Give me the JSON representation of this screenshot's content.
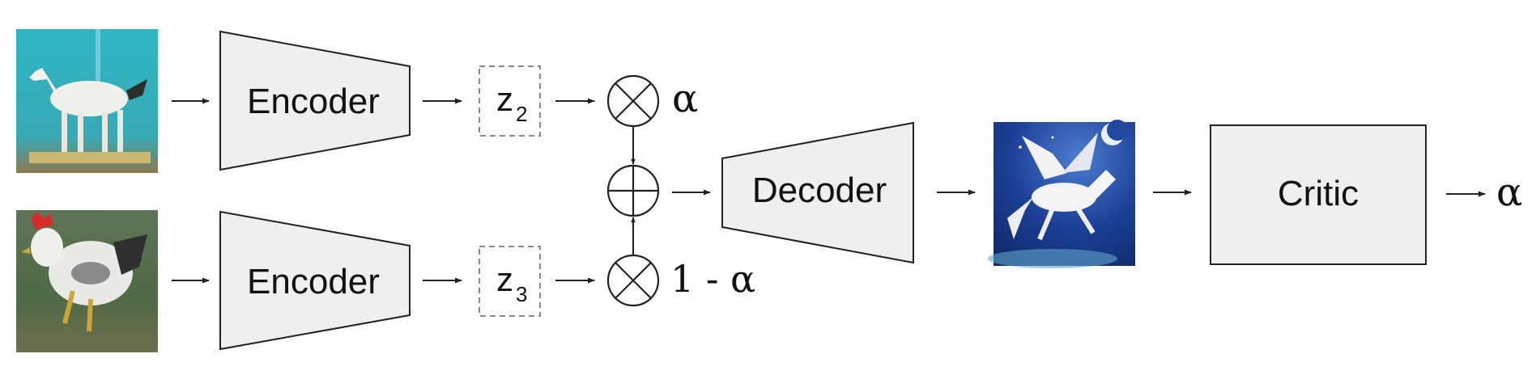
{
  "diagram": {
    "encoder_top": "Encoder",
    "encoder_bottom": "Encoder",
    "latent_top": {
      "base": "z",
      "sub": "2"
    },
    "latent_bottom": {
      "base": "z",
      "sub": "3"
    },
    "weight_top": "α",
    "weight_bottom": "1 - α",
    "decoder": "Decoder",
    "critic": "Critic",
    "critic_output": "α"
  },
  "images": {
    "input_top": "horse",
    "input_bottom": "rooster",
    "output": "pegasus"
  },
  "colors": {
    "box_fill": "#efefef",
    "stroke": "#222222",
    "latent_stroke": "#888888"
  },
  "icons": {
    "multiply": "circled-times-icon",
    "add": "circled-plus-icon",
    "arrow": "arrow-right-icon"
  }
}
